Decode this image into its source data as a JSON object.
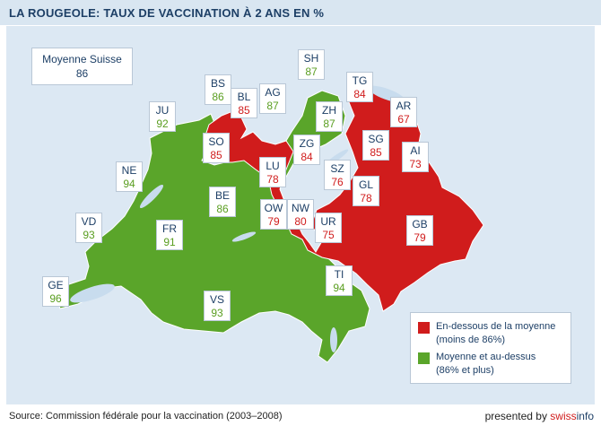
{
  "title": "LA ROUGEOLE: TAUX DE VACCINATION À 2 ANS EN %",
  "average": {
    "label": "Moyenne Suisse",
    "value": "86"
  },
  "colors": {
    "below": "#d01c1c",
    "above": "#5aa52a",
    "lakes": "#c8dcee",
    "background": "#dce8f3"
  },
  "cantons": [
    {
      "code": "SH",
      "value": "87",
      "group": "above"
    },
    {
      "code": "BS",
      "value": "86",
      "group": "above"
    },
    {
      "code": "BL",
      "value": "85",
      "group": "below"
    },
    {
      "code": "AG",
      "value": "87",
      "group": "above"
    },
    {
      "code": "TG",
      "value": "84",
      "group": "below"
    },
    {
      "code": "AR",
      "value": "67",
      "group": "below"
    },
    {
      "code": "JU",
      "value": "92",
      "group": "above"
    },
    {
      "code": "ZH",
      "value": "87",
      "group": "above"
    },
    {
      "code": "SO",
      "value": "85",
      "group": "below"
    },
    {
      "code": "ZG",
      "value": "84",
      "group": "below"
    },
    {
      "code": "SG",
      "value": "85",
      "group": "below"
    },
    {
      "code": "AI",
      "value": "73",
      "group": "below"
    },
    {
      "code": "NE",
      "value": "94",
      "group": "above"
    },
    {
      "code": "LU",
      "value": "78",
      "group": "below"
    },
    {
      "code": "SZ",
      "value": "76",
      "group": "below"
    },
    {
      "code": "BE",
      "value": "86",
      "group": "above"
    },
    {
      "code": "GL",
      "value": "78",
      "group": "below"
    },
    {
      "code": "OW",
      "value": "79",
      "group": "below"
    },
    {
      "code": "NW",
      "value": "80",
      "group": "below"
    },
    {
      "code": "VD",
      "value": "93",
      "group": "above"
    },
    {
      "code": "FR",
      "value": "91",
      "group": "above"
    },
    {
      "code": "UR",
      "value": "75",
      "group": "below"
    },
    {
      "code": "GB",
      "value": "79",
      "group": "below"
    },
    {
      "code": "GE",
      "value": "96",
      "group": "above"
    },
    {
      "code": "TI",
      "value": "94",
      "group": "above"
    },
    {
      "code": "VS",
      "value": "93",
      "group": "above"
    }
  ],
  "legend": [
    {
      "line1": "En-dessous de la moyenne",
      "line2": "(moins de 86%)",
      "group": "below"
    },
    {
      "line1": "Moyenne et au-dessus",
      "line2": "(86% et plus)",
      "group": "above"
    }
  ],
  "source": "Source: Commission fédérale pour la vaccination (2003–2008)",
  "presented": {
    "prefix": "presented by ",
    "brand_a": "swiss",
    "brand_b": "info"
  }
}
